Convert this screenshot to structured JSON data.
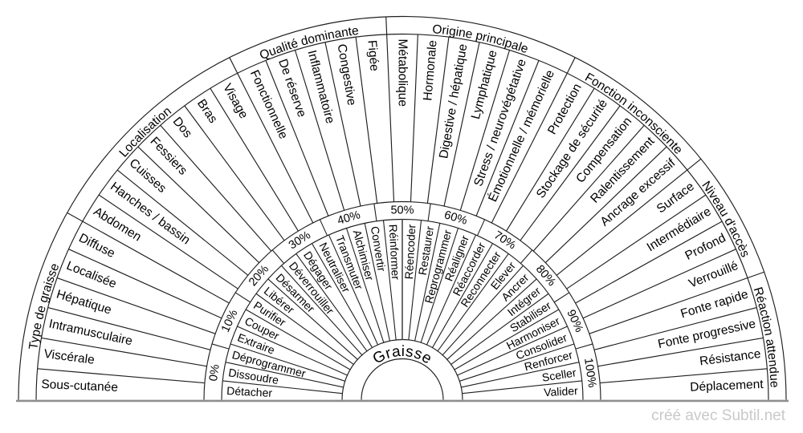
{
  "title": "Graisse",
  "credit": "créé avec Subtil.net",
  "percent_ring": {
    "labels": [
      "0%",
      "10%",
      "20%",
      "30%",
      "40%",
      "50%",
      "60%",
      "70%",
      "80%",
      "90%",
      "100%"
    ]
  },
  "action_ring": {
    "items": [
      "Détacher",
      "Dissoudre",
      "Déprogrammer",
      "Extraire",
      "Couper",
      "Purifier",
      "Libérer",
      "Désarmer",
      "Déverrouiller",
      "Dégager",
      "Neutraliser",
      "Transmuter",
      "Alchimiser",
      "Convertir",
      "Réinformer",
      "Réencoder",
      "Restaurer",
      "Reprogrammer",
      "Réaligner",
      "Réaccorder",
      "Reconnecter",
      "Elever",
      "Ancrer",
      "Intégrer",
      "Stabiliser",
      "Harmoniser",
      "Consolider",
      "Renforcer",
      "Sceller",
      "Valider"
    ]
  },
  "categories": [
    {
      "label": "Type de graisse",
      "items": [
        "Sous-cutanée",
        "Viscérale",
        "Intramusculaire",
        "Hépatique",
        "Localisée",
        "Diffuse"
      ]
    },
    {
      "label": "Localisation",
      "items": [
        "Abdomen",
        "Hanches / bassin",
        "Cuisses",
        "Fessiers",
        "Dos",
        "Bras",
        "Visage"
      ]
    },
    {
      "label": "Qualité dominante",
      "items": [
        "Fonctionnelle",
        "De réserve",
        "Inflammatoire",
        "Congestive",
        "Figée"
      ]
    },
    {
      "label": "Origine principale",
      "items": [
        "Métabolique",
        "Hormonale",
        "Digestive / hépatique",
        "Lymphatique",
        "Stress / neurovégétative",
        "Émotionnelle / mémorielle"
      ]
    },
    {
      "label": "Fonction inconsciente",
      "items": [
        "Protection",
        "Stockage de sécurité",
        "Compensation",
        "Ralentissement",
        "Ancrage excessif"
      ]
    },
    {
      "label": "Niveau d'accès",
      "items": [
        "Surface",
        "Intermédiaire",
        "Profond",
        "Verrouillé"
      ]
    },
    {
      "label": "Réaction attendue",
      "items": [
        "Fonte rapide",
        "Fonte progressive",
        "Résistance",
        "Déplacement"
      ]
    }
  ],
  "colors": {
    "line": "#1f1f1f",
    "text": "#000000",
    "center_line": "#555555",
    "baseline": "#8f8f8f",
    "credit": "#c9c9c9",
    "background": "#ffffff"
  }
}
